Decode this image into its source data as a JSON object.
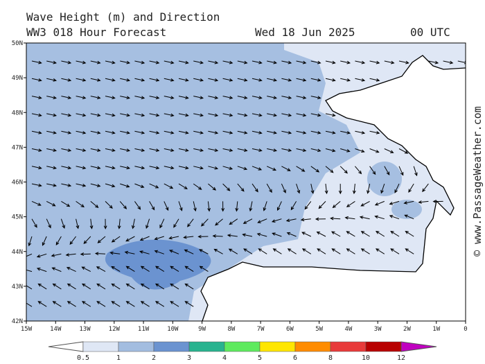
{
  "header": {
    "title": "Wave Height (m) and Direction",
    "subtitle": "WW3 018 Hour Forecast",
    "date": "Wed 18 Jun 2025",
    "time": "00 UTC"
  },
  "axes": {
    "lat": [
      "50N",
      "49N",
      "48N",
      "47N",
      "46N",
      "45N",
      "44N",
      "43N",
      "42N"
    ],
    "lon": [
      "15W",
      "14W",
      "13W",
      "12W",
      "11W",
      "10W",
      "9W",
      "8W",
      "7W",
      "6W",
      "5W",
      "4W",
      "3W",
      "2W",
      "1W",
      "0"
    ]
  },
  "colorbar": {
    "labels": [
      "0.5",
      "1",
      "2",
      "3",
      "4",
      "5",
      "6",
      "8",
      "10",
      "12"
    ]
  },
  "watermark": "© www.PassageWeather.com"
}
